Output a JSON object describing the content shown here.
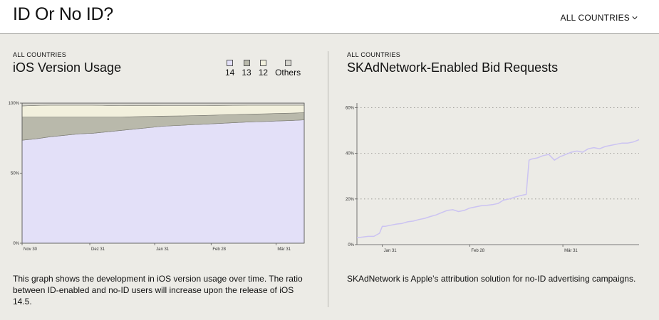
{
  "header": {
    "title": "ID Or No ID?",
    "country_select": "ALL COUNTRIES"
  },
  "left_panel": {
    "eyebrow": "ALL COUNTRIES",
    "title": "iOS Version Usage",
    "legend": [
      {
        "label": "14",
        "color": "#e3e0f8"
      },
      {
        "label": "13",
        "color": "#b9b9ab"
      },
      {
        "label": "12",
        "color": "#f2f0dd"
      },
      {
        "label": "Others",
        "color": "#d6d5ce"
      }
    ],
    "description": "This graph shows the development in iOS version usage over time. The ratio between ID-enabled and no-ID users will increase upon the release of iOS 14.5."
  },
  "right_panel": {
    "eyebrow": "ALL COUNTRIES",
    "title": "SKAdNetwork-Enabled Bid Requests",
    "description": "SKAdNetwork is Apple’s attribution solution for no-ID advertising campaigns."
  },
  "chart_data": [
    {
      "type": "area",
      "stacked": true,
      "x_ticks": [
        "Nov 30",
        "Dez 31",
        "Jan 31",
        "Feb 28",
        "Mär 31"
      ],
      "y_ticks": [
        "0%",
        "50%",
        "100%"
      ],
      "ylim": [
        0,
        100
      ],
      "x": [
        0,
        5,
        10,
        15,
        20,
        25,
        30,
        35,
        40,
        45,
        50,
        55,
        60,
        65,
        70,
        75,
        80,
        85,
        90,
        95,
        100
      ],
      "series": [
        {
          "name": "14",
          "values": [
            73.5,
            74.5,
            76,
            77,
            78,
            78.5,
            79.5,
            80.5,
            81.5,
            82.5,
            83.5,
            84,
            84.5,
            85,
            85.5,
            86,
            86.5,
            86.8,
            87.2,
            87.5,
            88
          ]
        },
        {
          "name": "13",
          "values": [
            16.5,
            15.5,
            14,
            13,
            12,
            11.5,
            10.5,
            9.5,
            8.8,
            8,
            7.2,
            6.8,
            6.5,
            6.2,
            6,
            5.8,
            5.6,
            5.5,
            5.4,
            5.3,
            5.2
          ]
        },
        {
          "name": "12",
          "values": [
            8,
            8.3,
            8.5,
            8.5,
            8.5,
            8.5,
            8.3,
            8.2,
            8,
            7.8,
            7.5,
            7.4,
            7.2,
            7,
            6.8,
            6.6,
            6.4,
            6.2,
            5.9,
            5.7,
            5.3
          ]
        },
        {
          "name": "Others",
          "values": [
            2,
            1.7,
            1.5,
            1.5,
            1.5,
            1.5,
            1.7,
            1.8,
            1.7,
            1.7,
            1.8,
            1.8,
            1.8,
            1.8,
            1.7,
            1.6,
            1.5,
            1.5,
            1.5,
            1.5,
            1.5
          ]
        }
      ]
    },
    {
      "type": "line",
      "x_ticks": [
        "Jan 31",
        "Feb 28",
        "Mär 31"
      ],
      "y_ticks": [
        "0%",
        "20%",
        "40%",
        "60%"
      ],
      "ylim": [
        0,
        62
      ],
      "grid": true,
      "x": [
        0,
        2,
        4,
        6,
        8,
        9,
        10,
        12,
        14,
        16,
        18,
        20,
        22,
        24,
        26,
        28,
        30,
        32,
        34,
        36,
        38,
        40,
        42,
        44,
        46,
        48,
        50,
        52,
        54,
        56,
        58,
        60,
        61,
        62,
        64,
        66,
        68,
        70,
        72,
        74,
        76,
        78,
        80,
        82,
        84,
        86,
        88,
        90,
        92,
        94,
        96,
        98,
        100
      ],
      "values": [
        3,
        3.3,
        3.6,
        3.6,
        5,
        8,
        8,
        8.5,
        9,
        9.3,
        10,
        10.3,
        11,
        11.5,
        12.3,
        13,
        14,
        15,
        15.3,
        14.5,
        15,
        16,
        16.5,
        17,
        17.2,
        17.5,
        18,
        19.5,
        20,
        20.8,
        21.5,
        22,
        37,
        37.5,
        38,
        39,
        39.5,
        37,
        38.5,
        39.5,
        40.5,
        41,
        40.5,
        42,
        42.5,
        42,
        43,
        43.5,
        44,
        44.5,
        44.5,
        45,
        46
      ]
    }
  ]
}
